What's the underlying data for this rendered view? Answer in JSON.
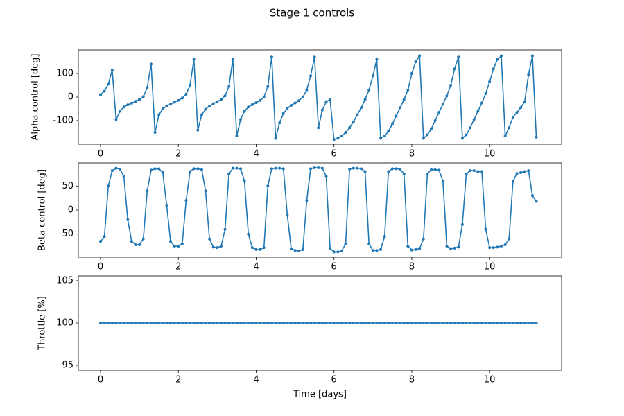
{
  "title": "Stage 1 controls",
  "chart_data": [
    {
      "type": "line",
      "ylabel": "Alpha control [deg]",
      "color": "#1f77b4",
      "xlim": [
        -0.57,
        11.85
      ],
      "xticks": [
        0,
        2,
        4,
        6,
        8,
        10
      ],
      "ylim": [
        -200,
        200
      ],
      "yticks": [
        -100,
        0,
        100
      ],
      "x": [
        0,
        0.1,
        0.2,
        0.3,
        0.4,
        0.5,
        0.6,
        0.7,
        0.8,
        0.9,
        1,
        1.1,
        1.2,
        1.3,
        1.4,
        1.5,
        1.6,
        1.7,
        1.8,
        1.9,
        2,
        2.1,
        2.2,
        2.3,
        2.4,
        2.5,
        2.6,
        2.7,
        2.8,
        2.9,
        3,
        3.1,
        3.2,
        3.3,
        3.4,
        3.5,
        3.6,
        3.7,
        3.8,
        3.9,
        4,
        4.1,
        4.2,
        4.3,
        4.4,
        4.5,
        4.6,
        4.7,
        4.8,
        4.9,
        5,
        5.1,
        5.2,
        5.3,
        5.4,
        5.5,
        5.6,
        5.7,
        5.8,
        5.9,
        6,
        6.1,
        6.2,
        6.3,
        6.4,
        6.5,
        6.6,
        6.7,
        6.8,
        6.9,
        7,
        7.1,
        7.2,
        7.3,
        7.4,
        7.5,
        7.6,
        7.7,
        7.8,
        7.9,
        8,
        8.1,
        8.2,
        8.3,
        8.4,
        8.5,
        8.6,
        8.7,
        8.8,
        8.9,
        9,
        9.1,
        9.2,
        9.3,
        9.4,
        9.5,
        9.6,
        9.7,
        9.8,
        9.9,
        10,
        10.1,
        10.2,
        10.3,
        10.4,
        10.5,
        10.6,
        10.7,
        10.8,
        10.9,
        11,
        11.1,
        11.2
      ],
      "values": [
        10,
        25,
        55,
        115,
        -95,
        -60,
        -42,
        -33,
        -26,
        -18,
        -10,
        2,
        40,
        140,
        -150,
        -75,
        -50,
        -38,
        -30,
        -22,
        -14,
        -4,
        12,
        50,
        160,
        -140,
        -75,
        -52,
        -38,
        -28,
        -20,
        -10,
        5,
        45,
        160,
        -165,
        -95,
        -60,
        -42,
        -32,
        -24,
        -14,
        0,
        45,
        170,
        -175,
        -110,
        -70,
        -48,
        -35,
        -25,
        -15,
        0,
        30,
        90,
        170,
        -130,
        -55,
        -20,
        -10,
        -180,
        -175,
        -165,
        -150,
        -130,
        -105,
        -75,
        -45,
        -10,
        30,
        90,
        160,
        -175,
        -165,
        -145,
        -115,
        -80,
        -45,
        -10,
        30,
        100,
        150,
        175,
        -175,
        -160,
        -135,
        -100,
        -65,
        -30,
        5,
        50,
        120,
        170,
        -175,
        -160,
        -130,
        -95,
        -60,
        -25,
        15,
        65,
        120,
        160,
        175,
        -165,
        -130,
        -85,
        -65,
        -45,
        -20,
        95,
        175,
        -170
      ]
    },
    {
      "type": "line",
      "ylabel": "Beta control [deg]",
      "color": "#1f77b4",
      "xlim": [
        -0.57,
        11.85
      ],
      "xticks": [
        0,
        2,
        4,
        6,
        8,
        10
      ],
      "ylim": [
        -98,
        98
      ],
      "yticks": [
        -50,
        0,
        50
      ],
      "x": [
        0,
        0.1,
        0.2,
        0.3,
        0.4,
        0.5,
        0.6,
        0.7,
        0.8,
        0.9,
        1,
        1.1,
        1.2,
        1.3,
        1.4,
        1.5,
        1.6,
        1.7,
        1.8,
        1.9,
        2,
        2.1,
        2.2,
        2.3,
        2.4,
        2.5,
        2.6,
        2.7,
        2.8,
        2.9,
        3,
        3.1,
        3.2,
        3.3,
        3.4,
        3.5,
        3.6,
        3.7,
        3.8,
        3.9,
        4,
        4.1,
        4.2,
        4.3,
        4.4,
        4.5,
        4.6,
        4.7,
        4.8,
        4.9,
        5,
        5.1,
        5.2,
        5.3,
        5.4,
        5.5,
        5.6,
        5.7,
        5.8,
        5.9,
        6,
        6.1,
        6.2,
        6.3,
        6.4,
        6.5,
        6.6,
        6.7,
        6.8,
        6.9,
        7,
        7.1,
        7.2,
        7.3,
        7.4,
        7.5,
        7.6,
        7.7,
        7.8,
        7.9,
        8,
        8.1,
        8.2,
        8.3,
        8.4,
        8.5,
        8.6,
        8.7,
        8.8,
        8.9,
        9,
        9.1,
        9.2,
        9.3,
        9.4,
        9.5,
        9.6,
        9.7,
        9.8,
        9.9,
        10,
        10.1,
        10.2,
        10.3,
        10.4,
        10.5,
        10.6,
        10.7,
        10.8,
        10.9,
        11,
        11.1,
        11.2
      ],
      "values": [
        -65,
        -55,
        50,
        82,
        87,
        85,
        70,
        -20,
        -65,
        -72,
        -72,
        -60,
        40,
        83,
        86,
        86,
        78,
        10,
        -65,
        -75,
        -75,
        -70,
        20,
        80,
        86,
        86,
        84,
        40,
        -60,
        -77,
        -78,
        -75,
        -40,
        75,
        87,
        87,
        86,
        60,
        -50,
        -78,
        -82,
        -82,
        -78,
        50,
        86,
        87,
        87,
        86,
        -10,
        -80,
        -84,
        -85,
        -82,
        20,
        86,
        88,
        88,
        87,
        70,
        -80,
        -87,
        -87,
        -85,
        -70,
        85,
        87,
        87,
        86,
        80,
        -70,
        -84,
        -84,
        -82,
        -55,
        80,
        86,
        86,
        85,
        75,
        -75,
        -83,
        -82,
        -80,
        -60,
        75,
        84,
        84,
        83,
        60,
        -75,
        -80,
        -79,
        -77,
        -30,
        75,
        82,
        82,
        80,
        80,
        -40,
        -78,
        -78,
        -77,
        -75,
        -72,
        -60,
        60,
        76,
        78,
        80,
        82,
        30,
        18
      ]
    },
    {
      "type": "line",
      "ylabel": "Throttle [%]",
      "xlabel": "Time [days]",
      "color": "#1f77b4",
      "xlim": [
        -0.57,
        11.85
      ],
      "xticks": [
        0,
        2,
        4,
        6,
        8,
        10
      ],
      "ylim": [
        94.43,
        105.57
      ],
      "yticks": [
        95,
        100,
        105
      ],
      "x": [
        0,
        0.1,
        0.2,
        0.3,
        0.4,
        0.5,
        0.6,
        0.7,
        0.8,
        0.9,
        1,
        1.1,
        1.2,
        1.3,
        1.4,
        1.5,
        1.6,
        1.7,
        1.8,
        1.9,
        2,
        2.1,
        2.2,
        2.3,
        2.4,
        2.5,
        2.6,
        2.7,
        2.8,
        2.9,
        3,
        3.1,
        3.2,
        3.3,
        3.4,
        3.5,
        3.6,
        3.7,
        3.8,
        3.9,
        4,
        4.1,
        4.2,
        4.3,
        4.4,
        4.5,
        4.6,
        4.7,
        4.8,
        4.9,
        5,
        5.1,
        5.2,
        5.3,
        5.4,
        5.5,
        5.6,
        5.7,
        5.8,
        5.9,
        6,
        6.1,
        6.2,
        6.3,
        6.4,
        6.5,
        6.6,
        6.7,
        6.8,
        6.9,
        7,
        7.1,
        7.2,
        7.3,
        7.4,
        7.5,
        7.6,
        7.7,
        7.8,
        7.9,
        8,
        8.1,
        8.2,
        8.3,
        8.4,
        8.5,
        8.6,
        8.7,
        8.8,
        8.9,
        9,
        9.1,
        9.2,
        9.3,
        9.4,
        9.5,
        9.6,
        9.7,
        9.8,
        9.9,
        10,
        10.1,
        10.2,
        10.3,
        10.4,
        10.5,
        10.6,
        10.7,
        10.8,
        10.9,
        11,
        11.1,
        11.2
      ],
      "values": [
        100,
        100,
        100,
        100,
        100,
        100,
        100,
        100,
        100,
        100,
        100,
        100,
        100,
        100,
        100,
        100,
        100,
        100,
        100,
        100,
        100,
        100,
        100,
        100,
        100,
        100,
        100,
        100,
        100,
        100,
        100,
        100,
        100,
        100,
        100,
        100,
        100,
        100,
        100,
        100,
        100,
        100,
        100,
        100,
        100,
        100,
        100,
        100,
        100,
        100,
        100,
        100,
        100,
        100,
        100,
        100,
        100,
        100,
        100,
        100,
        100,
        100,
        100,
        100,
        100,
        100,
        100,
        100,
        100,
        100,
        100,
        100,
        100,
        100,
        100,
        100,
        100,
        100,
        100,
        100,
        100,
        100,
        100,
        100,
        100,
        100,
        100,
        100,
        100,
        100,
        100,
        100,
        100,
        100,
        100,
        100,
        100,
        100,
        100,
        100,
        100,
        100,
        100,
        100,
        100,
        100,
        100,
        100,
        100,
        100,
        100,
        100,
        100
      ]
    }
  ]
}
